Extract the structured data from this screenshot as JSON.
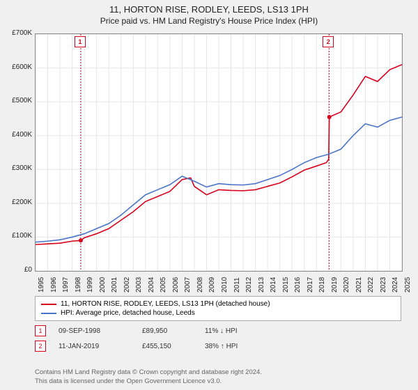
{
  "title": "11, HORTON RISE, RODLEY, LEEDS, LS13 1PH",
  "subtitle": "Price paid vs. HM Land Registry's House Price Index (HPI)",
  "chart": {
    "type": "line",
    "background_color": "#ffffff",
    "grid_color": "#e6e6e6",
    "plot_border": "#888888",
    "ylim": [
      0,
      700000
    ],
    "ytick_step": 100000,
    "ytick_labels": [
      "£0",
      "£100K",
      "£200K",
      "£300K",
      "£400K",
      "£500K",
      "£600K",
      "£700K"
    ],
    "xlim": [
      1995,
      2025
    ],
    "xtick_step": 1,
    "label_fontsize": 10,
    "line_width": 1.6,
    "series": [
      {
        "name": "property",
        "label": "11, HORTON RISE, RODLEY, LEEDS, LS13 1PH (detached house)",
        "color": "#d9001b",
        "x": [
          1995,
          1996,
          1997,
          1998,
          1998.7,
          1999,
          2000,
          2001,
          2002,
          2003,
          2004,
          2005,
          2006,
          2007,
          2007.7,
          2008,
          2009,
          2010,
          2011,
          2012,
          2013,
          2014,
          2015,
          2016,
          2017,
          2018,
          2018.8,
          2019,
          2019.05,
          2020,
          2021,
          2022,
          2023,
          2024,
          2025
        ],
        "y": [
          78000,
          80000,
          82000,
          88000,
          89950,
          98000,
          110000,
          125000,
          150000,
          175000,
          205000,
          220000,
          235000,
          270000,
          275000,
          250000,
          225000,
          240000,
          238000,
          237000,
          240000,
          250000,
          260000,
          278000,
          298000,
          310000,
          320000,
          330000,
          455000,
          470000,
          520000,
          575000,
          560000,
          595000,
          610000
        ]
      },
      {
        "name": "hpi",
        "label": "HPI: Average price, detached house, Leeds",
        "color": "#4a74c9",
        "x": [
          1995,
          1996,
          1997,
          1998,
          1999,
          2000,
          2001,
          2002,
          2003,
          2004,
          2005,
          2006,
          2007,
          2008,
          2009,
          2010,
          2011,
          2012,
          2013,
          2014,
          2015,
          2016,
          2017,
          2018,
          2019,
          2020,
          2021,
          2022,
          2023,
          2024,
          2025
        ],
        "y": [
          85000,
          88000,
          92000,
          100000,
          110000,
          125000,
          140000,
          165000,
          195000,
          225000,
          240000,
          255000,
          280000,
          265000,
          248000,
          258000,
          255000,
          254000,
          258000,
          270000,
          282000,
          300000,
          320000,
          335000,
          345000,
          360000,
          400000,
          435000,
          425000,
          445000,
          455000
        ]
      }
    ],
    "markers": [
      {
        "id": "1",
        "x": 1998.7,
        "y_top": true,
        "color": "#d9001b"
      },
      {
        "id": "2",
        "x": 2019.03,
        "y_top": true,
        "color": "#d9001b"
      }
    ]
  },
  "legend": {
    "items": [
      {
        "color": "#d9001b",
        "label": "11, HORTON RISE, RODLEY, LEEDS, LS13 1PH (detached house)"
      },
      {
        "color": "#4a74c9",
        "label": "HPI: Average price, detached house, Leeds"
      }
    ]
  },
  "sales": [
    {
      "id": "1",
      "color": "#d9001b",
      "date": "09-SEP-1998",
      "price": "£89,950",
      "pct": "11% ↓ HPI"
    },
    {
      "id": "2",
      "color": "#d9001b",
      "date": "11-JAN-2019",
      "price": "£455,150",
      "pct": "38% ↑ HPI"
    }
  ],
  "credit": {
    "line1": "Contains HM Land Registry data © Crown copyright and database right 2024.",
    "line2": "This data is licensed under the Open Government Licence v3.0."
  }
}
